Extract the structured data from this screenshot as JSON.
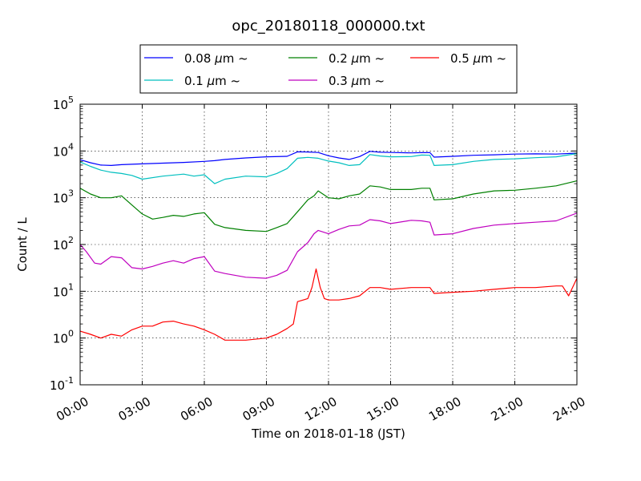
{
  "chart_data": {
    "type": "line",
    "title": "opc_20180118_000000.txt",
    "xlabel": "Time on 2018-01-18 (JST)",
    "ylabel": "Count / L",
    "x_unit": "hour",
    "xlim": [
      0,
      24
    ],
    "ylim": [
      0.1,
      100000
    ],
    "yscale": "log",
    "grid": true,
    "legend_position": "top",
    "x_ticks": [
      {
        "value": 0,
        "label": "00:00"
      },
      {
        "value": 3,
        "label": "03:00"
      },
      {
        "value": 6,
        "label": "06:00"
      },
      {
        "value": 9,
        "label": "09:00"
      },
      {
        "value": 12,
        "label": "12:00"
      },
      {
        "value": 15,
        "label": "15:00"
      },
      {
        "value": 18,
        "label": "18:00"
      },
      {
        "value": 21,
        "label": "21:00"
      },
      {
        "value": 24,
        "label": "24:00"
      }
    ],
    "y_ticks": [
      {
        "value": 0.1,
        "base": "10",
        "exp": "-1"
      },
      {
        "value": 1,
        "base": "10",
        "exp": "0"
      },
      {
        "value": 10,
        "base": "10",
        "exp": "1"
      },
      {
        "value": 100,
        "base": "10",
        "exp": "2"
      },
      {
        "value": 1000,
        "base": "10",
        "exp": "3"
      },
      {
        "value": 10000,
        "base": "10",
        "exp": "4"
      },
      {
        "value": 100000,
        "base": "10",
        "exp": "5"
      }
    ],
    "series": [
      {
        "name": "0.08 μm ~",
        "label_size": "0.08",
        "color": "#0000ff",
        "x": [
          0,
          0.5,
          1,
          1.5,
          2,
          3,
          4,
          5,
          6,
          6.5,
          7,
          8,
          9,
          10,
          10.5,
          11,
          11.5,
          12,
          12.5,
          13,
          13.5,
          14,
          14.5,
          15,
          16,
          16.5,
          16.9,
          17.1,
          18,
          19,
          20,
          21,
          22,
          23,
          24
        ],
        "y": [
          6500,
          5600,
          5000,
          4900,
          5100,
          5300,
          5500,
          5700,
          6000,
          6200,
          6600,
          7100,
          7500,
          7700,
          9600,
          9500,
          9300,
          7900,
          7100,
          6600,
          7600,
          9800,
          9400,
          9300,
          9100,
          9200,
          9200,
          7400,
          7700,
          8100,
          8300,
          8600,
          8700,
          8600,
          9000
        ]
      },
      {
        "name": "0.1 μm ~",
        "label_size": "0.1",
        "color": "#00bfbf",
        "x": [
          0,
          0.5,
          1,
          1.5,
          2,
          2.5,
          3,
          4,
          5,
          5.5,
          6,
          6.5,
          7,
          8,
          9,
          9.5,
          10,
          10.5,
          11,
          11.5,
          12,
          12.5,
          13,
          13.5,
          14,
          14.5,
          15,
          16,
          16.5,
          16.9,
          17.1,
          18,
          19,
          20,
          21,
          22,
          23,
          24
        ],
        "y": [
          5800,
          4700,
          3900,
          3500,
          3300,
          3000,
          2500,
          2900,
          3200,
          2900,
          3100,
          2000,
          2500,
          2900,
          2800,
          3300,
          4200,
          7000,
          7300,
          7000,
          6100,
          5600,
          4900,
          5100,
          8400,
          7800,
          7500,
          7600,
          8200,
          8100,
          4900,
          5100,
          6000,
          6600,
          6800,
          7200,
          7500,
          8800
        ]
      },
      {
        "name": "0.2 μm ~",
        "label_size": "0.2",
        "color": "#008000",
        "x": [
          0,
          0.5,
          1,
          1.5,
          2,
          2.5,
          3,
          3.5,
          4,
          4.5,
          5,
          5.5,
          6,
          6.5,
          7,
          8,
          9,
          9.5,
          10,
          10.5,
          11,
          11.3,
          11.5,
          12,
          12.5,
          13,
          13.5,
          14,
          14.5,
          15,
          16,
          16.5,
          16.9,
          17.1,
          18,
          19,
          20,
          21,
          22,
          23,
          24
        ],
        "y": [
          1600,
          1200,
          1000,
          1000,
          1100,
          700,
          450,
          350,
          380,
          420,
          400,
          450,
          480,
          270,
          230,
          200,
          190,
          230,
          280,
          500,
          900,
          1100,
          1400,
          1000,
          950,
          1100,
          1200,
          1800,
          1700,
          1500,
          1500,
          1600,
          1600,
          900,
          950,
          1200,
          1400,
          1450,
          1600,
          1800,
          2300
        ]
      },
      {
        "name": "0.3 μm ~",
        "label_size": "0.3",
        "color": "#bf00bf",
        "x": [
          0,
          0.3,
          0.7,
          1,
          1.5,
          2,
          2.5,
          3,
          3.5,
          4,
          4.5,
          5,
          5.5,
          6,
          6.5,
          7,
          8,
          9,
          9.5,
          10,
          10.5,
          11,
          11.3,
          11.5,
          12,
          12.5,
          13,
          13.5,
          14,
          14.5,
          15,
          16,
          16.5,
          16.9,
          17.1,
          18,
          19,
          20,
          21,
          22,
          23,
          24
        ],
        "y": [
          100,
          70,
          40,
          38,
          55,
          52,
          32,
          30,
          34,
          40,
          45,
          40,
          50,
          55,
          27,
          24,
          20,
          19,
          22,
          28,
          70,
          110,
          170,
          200,
          170,
          210,
          250,
          260,
          340,
          320,
          280,
          330,
          320,
          300,
          160,
          170,
          220,
          260,
          280,
          300,
          320,
          470
        ]
      },
      {
        "name": "0.5 μm ~",
        "label_size": "0.5",
        "color": "#ff0000",
        "x": [
          0,
          0.5,
          1,
          1.5,
          2,
          2.5,
          3,
          3.5,
          4,
          4.5,
          5,
          5.5,
          6,
          6.5,
          7,
          8,
          9,
          9.5,
          10,
          10.3,
          10.5,
          11,
          11.2,
          11.4,
          11.6,
          11.8,
          12,
          12.5,
          13,
          13.5,
          14,
          14.5,
          15,
          16,
          16.5,
          16.9,
          17.1,
          18,
          19,
          20,
          21,
          22,
          23,
          23.3,
          23.6,
          24
        ],
        "y": [
          1.4,
          1.2,
          1.0,
          1.2,
          1.1,
          1.5,
          1.8,
          1.8,
          2.2,
          2.3,
          2.0,
          1.8,
          1.5,
          1.2,
          0.9,
          0.9,
          1.0,
          1.2,
          1.6,
          2.0,
          6.0,
          7.0,
          12,
          30,
          12,
          7.0,
          6.5,
          6.5,
          7.0,
          8.0,
          12,
          12,
          11,
          12,
          12,
          12,
          9.0,
          9.5,
          10,
          11,
          12,
          12,
          13,
          13,
          8.0,
          19
        ]
      }
    ]
  }
}
